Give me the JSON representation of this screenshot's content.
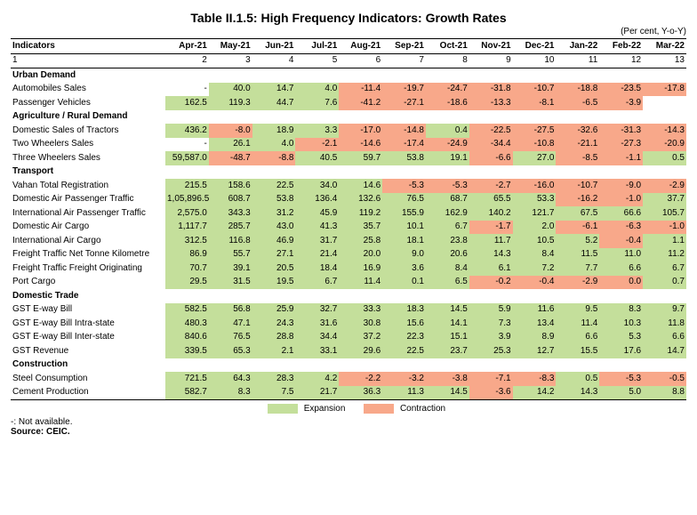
{
  "title": "Table II.1.5: High Frequency Indicators: Growth Rates",
  "unit": "(Per cent, Y-o-Y)",
  "indicator_label": "Indicators",
  "months": [
    "Apr-21",
    "May-21",
    "Jun-21",
    "Jul-21",
    "Aug-21",
    "Sep-21",
    "Oct-21",
    "Nov-21",
    "Dec-21",
    "Jan-22",
    "Feb-22",
    "Mar-22"
  ],
  "colnums": [
    "1",
    "2",
    "3",
    "4",
    "5",
    "6",
    "7",
    "8",
    "9",
    "10",
    "11",
    "12",
    "13"
  ],
  "colors": {
    "expansion": "#c4df9b",
    "contraction": "#f8a88a"
  },
  "legend": {
    "expansion": "Expansion",
    "contraction": "Contraction"
  },
  "notes": {
    "na": "-: Not available.",
    "source": "Source: CEIC."
  },
  "sections": [
    {
      "name": "Urban Demand",
      "rows": [
        {
          "label": "Automobiles Sales",
          "vals": [
            "-",
            "40.0",
            "14.7",
            "4.0",
            "-11.4",
            "-19.7",
            "-24.7",
            "-31.8",
            "-10.7",
            "-18.8",
            "-23.5",
            "-17.8"
          ],
          "cls": [
            "",
            "exp",
            "exp",
            "exp",
            "con",
            "con",
            "con",
            "con",
            "con",
            "con",
            "con",
            "con"
          ]
        },
        {
          "label": "Passenger Vehicles",
          "vals": [
            "162.5",
            "119.3",
            "44.7",
            "7.6",
            "-41.2",
            "-27.1",
            "-18.6",
            "-13.3",
            "-8.1",
            "-6.5",
            "-3.9",
            ""
          ],
          "cls": [
            "exp",
            "exp",
            "exp",
            "exp",
            "con",
            "con",
            "con",
            "con",
            "con",
            "con",
            "con",
            ""
          ]
        }
      ]
    },
    {
      "name": "Agriculture / Rural Demand",
      "rows": [
        {
          "label": "Domestic Sales of Tractors",
          "vals": [
            "436.2",
            "-8.0",
            "18.9",
            "3.3",
            "-17.0",
            "-14.8",
            "0.4",
            "-22.5",
            "-27.5",
            "-32.6",
            "-31.3",
            "-14.3"
          ],
          "cls": [
            "exp",
            "con",
            "exp",
            "exp",
            "con",
            "con",
            "exp",
            "con",
            "con",
            "con",
            "con",
            "con"
          ]
        },
        {
          "label": "Two Wheelers Sales",
          "vals": [
            "-",
            "26.1",
            "4.0",
            "-2.1",
            "-14.6",
            "-17.4",
            "-24.9",
            "-34.4",
            "-10.8",
            "-21.1",
            "-27.3",
            "-20.9"
          ],
          "cls": [
            "",
            "exp",
            "exp",
            "con",
            "con",
            "con",
            "con",
            "con",
            "con",
            "con",
            "con",
            "con"
          ]
        },
        {
          "label": "Three Wheelers Sales",
          "vals": [
            "59,587.0",
            "-48.7",
            "-8.8",
            "40.5",
            "59.7",
            "53.8",
            "19.1",
            "-6.6",
            "27.0",
            "-8.5",
            "-1.1",
            "0.5"
          ],
          "cls": [
            "exp",
            "con",
            "con",
            "exp",
            "exp",
            "exp",
            "exp",
            "con",
            "exp",
            "con",
            "con",
            "exp"
          ]
        }
      ]
    },
    {
      "name": "Transport",
      "rows": [
        {
          "label": "Vahan Total Registration",
          "vals": [
            "215.5",
            "158.6",
            "22.5",
            "34.0",
            "14.6",
            "-5.3",
            "-5.3",
            "-2.7",
            "-16.0",
            "-10.7",
            "-9.0",
            "-2.9"
          ],
          "cls": [
            "exp",
            "exp",
            "exp",
            "exp",
            "exp",
            "con",
            "con",
            "con",
            "con",
            "con",
            "con",
            "con"
          ]
        },
        {
          "label": "Domestic Air Passenger Traffic",
          "vals": [
            "1,05,896.5",
            "608.7",
            "53.8",
            "136.4",
            "132.6",
            "76.5",
            "68.7",
            "65.5",
            "53.3",
            "-16.2",
            "-1.0",
            "37.7"
          ],
          "cls": [
            "exp",
            "exp",
            "exp",
            "exp",
            "exp",
            "exp",
            "exp",
            "exp",
            "exp",
            "con",
            "con",
            "exp"
          ]
        },
        {
          "label": "International Air Passenger Traffic",
          "vals": [
            "2,575.0",
            "343.3",
            "31.2",
            "45.9",
            "119.2",
            "155.9",
            "162.9",
            "140.2",
            "121.7",
            "67.5",
            "66.6",
            "105.7"
          ],
          "cls": [
            "exp",
            "exp",
            "exp",
            "exp",
            "exp",
            "exp",
            "exp",
            "exp",
            "exp",
            "exp",
            "exp",
            "exp"
          ]
        },
        {
          "label": "Domestic Air Cargo",
          "vals": [
            "1,117.7",
            "285.7",
            "43.0",
            "41.3",
            "35.7",
            "10.1",
            "6.7",
            "-1.7",
            "2.0",
            "-6.1",
            "-6.3",
            "-1.0"
          ],
          "cls": [
            "exp",
            "exp",
            "exp",
            "exp",
            "exp",
            "exp",
            "exp",
            "con",
            "exp",
            "con",
            "con",
            "con"
          ]
        },
        {
          "label": "International Air Cargo",
          "vals": [
            "312.5",
            "116.8",
            "46.9",
            "31.7",
            "25.8",
            "18.1",
            "23.8",
            "11.7",
            "10.5",
            "5.2",
            "-0.4",
            "1.1"
          ],
          "cls": [
            "exp",
            "exp",
            "exp",
            "exp",
            "exp",
            "exp",
            "exp",
            "exp",
            "exp",
            "exp",
            "con",
            "exp"
          ]
        },
        {
          "label": "Freight Traffic Net Tonne Kilometre",
          "vals": [
            "86.9",
            "55.7",
            "27.1",
            "21.4",
            "20.0",
            "9.0",
            "20.6",
            "14.3",
            "8.4",
            "11.5",
            "11.0",
            "11.2"
          ],
          "cls": [
            "exp",
            "exp",
            "exp",
            "exp",
            "exp",
            "exp",
            "exp",
            "exp",
            "exp",
            "exp",
            "exp",
            "exp"
          ]
        },
        {
          "label": "Freight Traffic Freight Originating",
          "vals": [
            "70.7",
            "39.1",
            "20.5",
            "18.4",
            "16.9",
            "3.6",
            "8.4",
            "6.1",
            "7.2",
            "7.7",
            "6.6",
            "6.7"
          ],
          "cls": [
            "exp",
            "exp",
            "exp",
            "exp",
            "exp",
            "exp",
            "exp",
            "exp",
            "exp",
            "exp",
            "exp",
            "exp"
          ]
        },
        {
          "label": "Port Cargo",
          "vals": [
            "29.5",
            "31.5",
            "19.5",
            "6.7",
            "11.4",
            "0.1",
            "6.5",
            "-0.2",
            "-0.4",
            "-2.9",
            "0.0",
            "0.7"
          ],
          "cls": [
            "exp",
            "exp",
            "exp",
            "exp",
            "exp",
            "exp",
            "exp",
            "con",
            "con",
            "con",
            "con",
            "exp"
          ]
        }
      ]
    },
    {
      "name": "Domestic Trade",
      "rows": [
        {
          "label": "GST E-way Bill",
          "vals": [
            "582.5",
            "56.8",
            "25.9",
            "32.7",
            "33.3",
            "18.3",
            "14.5",
            "5.9",
            "11.6",
            "9.5",
            "8.3",
            "9.7"
          ],
          "cls": [
            "exp",
            "exp",
            "exp",
            "exp",
            "exp",
            "exp",
            "exp",
            "exp",
            "exp",
            "exp",
            "exp",
            "exp"
          ]
        },
        {
          "label": "GST E-way Bill Intra-state",
          "vals": [
            "480.3",
            "47.1",
            "24.3",
            "31.6",
            "30.8",
            "15.6",
            "14.1",
            "7.3",
            "13.4",
            "11.4",
            "10.3",
            "11.8"
          ],
          "cls": [
            "exp",
            "exp",
            "exp",
            "exp",
            "exp",
            "exp",
            "exp",
            "exp",
            "exp",
            "exp",
            "exp",
            "exp"
          ]
        },
        {
          "label": "GST E-way Bill Inter-state",
          "vals": [
            "840.6",
            "76.5",
            "28.8",
            "34.4",
            "37.2",
            "22.3",
            "15.1",
            "3.9",
            "8.9",
            "6.6",
            "5.3",
            "6.6"
          ],
          "cls": [
            "exp",
            "exp",
            "exp",
            "exp",
            "exp",
            "exp",
            "exp",
            "exp",
            "exp",
            "exp",
            "exp",
            "exp"
          ]
        },
        {
          "label": "GST Revenue",
          "vals": [
            "339.5",
            "65.3",
            "2.1",
            "33.1",
            "29.6",
            "22.5",
            "23.7",
            "25.3",
            "12.7",
            "15.5",
            "17.6",
            "14.7"
          ],
          "cls": [
            "exp",
            "exp",
            "exp",
            "exp",
            "exp",
            "exp",
            "exp",
            "exp",
            "exp",
            "exp",
            "exp",
            "exp"
          ]
        }
      ]
    },
    {
      "name": "Construction",
      "rows": [
        {
          "label": "Steel Consumption",
          "vals": [
            "721.5",
            "64.3",
            "28.3",
            "4.2",
            "-2.2",
            "-3.2",
            "-3.8",
            "-7.1",
            "-8.3",
            "0.5",
            "-5.3",
            "-0.5"
          ],
          "cls": [
            "exp",
            "exp",
            "exp",
            "exp",
            "con",
            "con",
            "con",
            "con",
            "con",
            "exp",
            "con",
            "con"
          ]
        },
        {
          "label": "Cement Production",
          "vals": [
            "582.7",
            "8.3",
            "7.5",
            "21.7",
            "36.3",
            "11.3",
            "14.5",
            "-3.6",
            "14.2",
            "14.3",
            "5.0",
            "8.8"
          ],
          "cls": [
            "exp",
            "exp",
            "exp",
            "exp",
            "exp",
            "exp",
            "exp",
            "con",
            "exp",
            "exp",
            "exp",
            "exp"
          ]
        }
      ]
    }
  ]
}
